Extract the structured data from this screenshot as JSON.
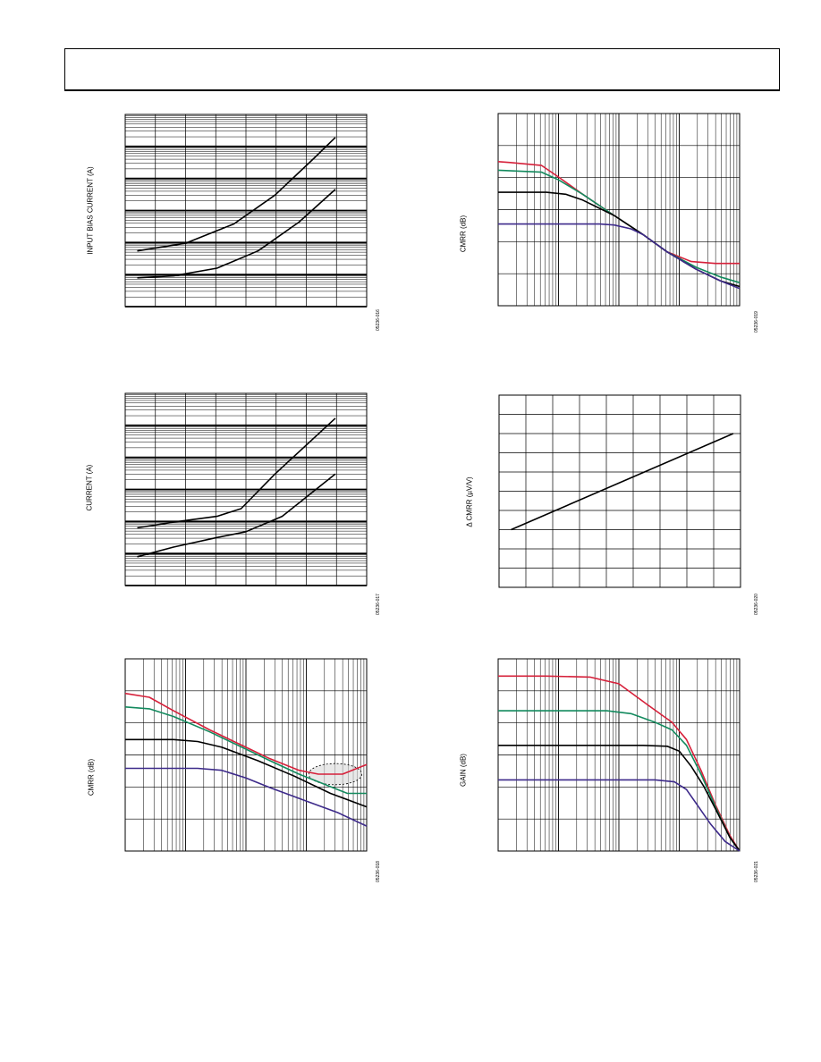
{
  "chart_data": [
    {
      "id": "p1",
      "type": "line",
      "yscale": "log",
      "xgrid": "linear",
      "ylabel": "INPUT BIAS CURRENT (A)",
      "fig_id": "05236-016",
      "series": [
        {
          "name": "",
          "color": "#000000",
          "points": [
            [
              0.05,
              0.71
            ],
            [
              0.25,
              0.67
            ],
            [
              0.45,
              0.57
            ],
            [
              0.62,
              0.42
            ],
            [
              0.78,
              0.23
            ],
            [
              0.87,
              0.12
            ]
          ]
        },
        {
          "name": "",
          "color": "#000000",
          "points": [
            [
              0.05,
              0.85
            ],
            [
              0.2,
              0.84
            ],
            [
              0.38,
              0.8
            ],
            [
              0.55,
              0.71
            ],
            [
              0.72,
              0.56
            ],
            [
              0.87,
              0.39
            ]
          ]
        }
      ]
    },
    {
      "id": "p2",
      "type": "line",
      "yscale": "linear",
      "xscale": "log",
      "ylabel": "CMRR (dB)",
      "fig_id": "05236-019",
      "series": [
        {
          "name": "",
          "color": "#d6203a",
          "points": [
            [
              0,
              0.25
            ],
            [
              0.05,
              0.255
            ],
            [
              0.18,
              0.27
            ],
            [
              0.25,
              0.33
            ],
            [
              0.35,
              0.42
            ],
            [
              0.48,
              0.53
            ],
            [
              0.6,
              0.63
            ],
            [
              0.7,
              0.72
            ],
            [
              0.8,
              0.77
            ],
            [
              0.9,
              0.78
            ],
            [
              1.0,
              0.78
            ]
          ]
        },
        {
          "name": "",
          "color": "#138a5e",
          "points": [
            [
              0,
              0.295
            ],
            [
              0.18,
              0.305
            ],
            [
              0.25,
              0.345
            ],
            [
              0.35,
              0.42
            ],
            [
              0.48,
              0.53
            ],
            [
              0.6,
              0.63
            ],
            [
              0.7,
              0.72
            ],
            [
              0.82,
              0.8
            ],
            [
              0.92,
              0.85
            ],
            [
              1.0,
              0.88
            ]
          ]
        },
        {
          "name": "",
          "color": "#000000",
          "points": [
            [
              0,
              0.41
            ],
            [
              0.2,
              0.41
            ],
            [
              0.28,
              0.42
            ],
            [
              0.35,
              0.45
            ],
            [
              0.48,
              0.53
            ],
            [
              0.6,
              0.63
            ],
            [
              0.7,
              0.72
            ],
            [
              0.82,
              0.81
            ],
            [
              0.92,
              0.87
            ],
            [
              1.0,
              0.9
            ]
          ]
        },
        {
          "name": "",
          "color": "#3d2a8a",
          "points": [
            [
              0,
              0.575
            ],
            [
              0.3,
              0.575
            ],
            [
              0.42,
              0.575
            ],
            [
              0.48,
              0.58
            ],
            [
              0.55,
              0.6
            ],
            [
              0.6,
              0.63
            ],
            [
              0.7,
              0.72
            ],
            [
              0.82,
              0.81
            ],
            [
              0.92,
              0.87
            ],
            [
              1.0,
              0.91
            ]
          ]
        }
      ]
    },
    {
      "id": "p3",
      "type": "line",
      "yscale": "log",
      "xgrid": "linear",
      "ylabel": "CURRENT (A)",
      "fig_id": "05236-017",
      "series": [
        {
          "name": "",
          "color": "#000000",
          "points": [
            [
              0.05,
              0.7
            ],
            [
              0.2,
              0.67
            ],
            [
              0.38,
              0.64
            ],
            [
              0.48,
              0.6
            ],
            [
              0.62,
              0.42
            ],
            [
              0.87,
              0.13
            ]
          ]
        },
        {
          "name": "",
          "color": "#000000",
          "points": [
            [
              0.05,
              0.85
            ],
            [
              0.2,
              0.8
            ],
            [
              0.38,
              0.75
            ],
            [
              0.5,
              0.72
            ],
            [
              0.65,
              0.64
            ],
            [
              0.87,
              0.42
            ]
          ]
        }
      ]
    },
    {
      "id": "p4",
      "type": "line",
      "yscale": "linear",
      "xgrid": "linear",
      "ylabel": "Δ CMRR (µV/V)",
      "fig_id": "05236-020",
      "series": [
        {
          "name": "",
          "color": "#000000",
          "points": [
            [
              0.05,
              0.7
            ],
            [
              0.97,
              0.2
            ]
          ]
        }
      ]
    },
    {
      "id": "p5",
      "type": "line",
      "yscale": "linear",
      "xscale": "log",
      "ylabel": "CMRR (dB)",
      "fig_id": "05236-018",
      "series": [
        {
          "name": "",
          "color": "#d6203a",
          "points": [
            [
              0,
              0.18
            ],
            [
              0.1,
              0.2
            ],
            [
              0.2,
              0.27
            ],
            [
              0.35,
              0.37
            ],
            [
              0.5,
              0.46
            ],
            [
              0.6,
              0.52
            ],
            [
              0.72,
              0.58
            ],
            [
              0.8,
              0.6
            ],
            [
              0.9,
              0.6
            ],
            [
              0.96,
              0.57
            ],
            [
              1.0,
              0.55
            ]
          ]
        },
        {
          "name": "",
          "color": "#138a5e",
          "points": [
            [
              0,
              0.25
            ],
            [
              0.1,
              0.26
            ],
            [
              0.2,
              0.3
            ],
            [
              0.35,
              0.38
            ],
            [
              0.5,
              0.47
            ],
            [
              0.6,
              0.53
            ],
            [
              0.72,
              0.6
            ],
            [
              0.82,
              0.65
            ],
            [
              0.92,
              0.7
            ],
            [
              1.0,
              0.7
            ]
          ]
        },
        {
          "name": "",
          "color": "#000000",
          "points": [
            [
              0,
              0.42
            ],
            [
              0.2,
              0.42
            ],
            [
              0.3,
              0.43
            ],
            [
              0.4,
              0.46
            ],
            [
              0.55,
              0.53
            ],
            [
              0.7,
              0.61
            ],
            [
              0.85,
              0.7
            ],
            [
              1.0,
              0.77
            ]
          ]
        },
        {
          "name": "",
          "color": "#3d2a8a",
          "points": [
            [
              0,
              0.57
            ],
            [
              0.3,
              0.57
            ],
            [
              0.4,
              0.58
            ],
            [
              0.5,
              0.62
            ],
            [
              0.6,
              0.67
            ],
            [
              0.75,
              0.74
            ],
            [
              0.88,
              0.8
            ],
            [
              1.0,
              0.87
            ]
          ]
        }
      ]
    },
    {
      "id": "p6",
      "type": "line",
      "yscale": "linear",
      "xscale": "log",
      "ylabel": "GAIN (dB)",
      "fig_id": "05236-021",
      "series": [
        {
          "name": "",
          "color": "#d6203a",
          "points": [
            [
              0,
              0.09
            ],
            [
              0.2,
              0.09
            ],
            [
              0.38,
              0.095
            ],
            [
              0.5,
              0.13
            ],
            [
              0.62,
              0.24
            ],
            [
              0.72,
              0.33
            ],
            [
              0.78,
              0.42
            ],
            [
              0.84,
              0.58
            ],
            [
              0.9,
              0.76
            ],
            [
              0.96,
              0.92
            ],
            [
              1.0,
              1.0
            ]
          ]
        },
        {
          "name": "",
          "color": "#138a5e",
          "points": [
            [
              0,
              0.27
            ],
            [
              0.45,
              0.27
            ],
            [
              0.55,
              0.285
            ],
            [
              0.65,
              0.33
            ],
            [
              0.72,
              0.37
            ],
            [
              0.78,
              0.45
            ],
            [
              0.84,
              0.6
            ],
            [
              0.9,
              0.77
            ],
            [
              0.96,
              0.93
            ],
            [
              1.0,
              1.0
            ]
          ]
        },
        {
          "name": "",
          "color": "#000000",
          "points": [
            [
              0,
              0.45
            ],
            [
              0.6,
              0.45
            ],
            [
              0.7,
              0.455
            ],
            [
              0.75,
              0.48
            ],
            [
              0.8,
              0.56
            ],
            [
              0.85,
              0.66
            ],
            [
              0.9,
              0.78
            ],
            [
              0.96,
              0.93
            ],
            [
              1.0,
              1.0
            ]
          ]
        },
        {
          "name": "",
          "color": "#3d2a8a",
          "points": [
            [
              0,
              0.63
            ],
            [
              0.65,
              0.63
            ],
            [
              0.73,
              0.64
            ],
            [
              0.78,
              0.68
            ],
            [
              0.83,
              0.77
            ],
            [
              0.88,
              0.86
            ],
            [
              0.94,
              0.95
            ],
            [
              1.0,
              1.0
            ]
          ]
        }
      ]
    }
  ]
}
